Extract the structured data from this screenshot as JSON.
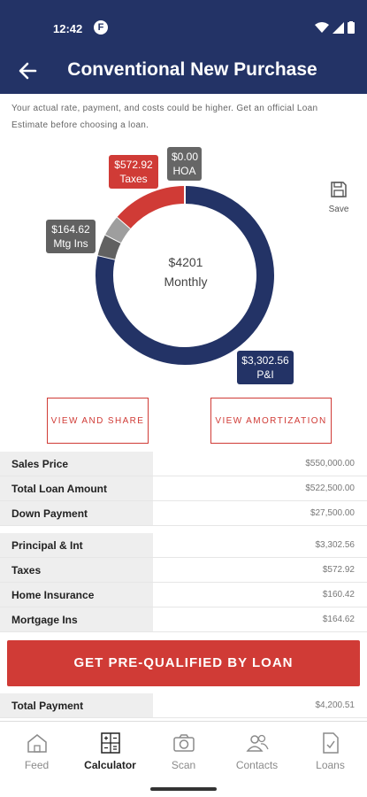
{
  "status_bar": {
    "time": "12:42",
    "app_badge": "F"
  },
  "header": {
    "title": "Conventional New Purchase"
  },
  "disclaimer": "Your actual rate, payment, and costs could be higher. Get an official Loan Estimate before choosing a loan.",
  "chart_data": {
    "type": "pie",
    "variant": "donut",
    "center_amount": "$4201",
    "center_label": "Monthly",
    "slices": [
      {
        "name": "P&I",
        "label": "$3,302.56",
        "value": 3302.56,
        "color": "#233366"
      },
      {
        "name": "Mtg Ins",
        "label": "$164.62",
        "value": 164.62,
        "color": "#616161"
      },
      {
        "name": "Home Insurance",
        "value": 160.42,
        "color": "#9e9e9e"
      },
      {
        "name": "Taxes",
        "label": "$572.92",
        "value": 572.92,
        "color": "#d03b36"
      },
      {
        "name": "HOA",
        "label": "$0.00",
        "value": 0.0,
        "color": "#666666"
      }
    ]
  },
  "tags": {
    "hoa": {
      "amount": "$0.00",
      "name": "HOA"
    },
    "taxes": {
      "amount": "$572.92",
      "name": "Taxes"
    },
    "mtg": {
      "amount": "$164.62",
      "name": "Mtg Ins"
    },
    "pi": {
      "amount": "$3,302.56",
      "name": "P&I"
    }
  },
  "save_label": "Save",
  "buttons": {
    "share": "VIEW AND SHARE",
    "amortization": "VIEW AMORTIZATION",
    "cta": "GET PRE-QUALIFIED BY LOAN"
  },
  "loan_rows": [
    {
      "label": "Sales Price",
      "value": "$550,000.00"
    },
    {
      "label": "Total Loan Amount",
      "value": "$522,500.00"
    },
    {
      "label": "Down Payment",
      "value": "$27,500.00"
    }
  ],
  "payment_rows": [
    {
      "label": "Principal & Int",
      "value": "$3,302.56"
    },
    {
      "label": "Taxes",
      "value": "$572.92"
    },
    {
      "label": "Home Insurance",
      "value": "$160.42"
    },
    {
      "label": "Mortgage Ins",
      "value": "$164.62"
    }
  ],
  "total_row": {
    "label": "Total Payment",
    "value": "$4,200.51"
  },
  "nav": [
    {
      "label": "Feed",
      "icon": "home-icon"
    },
    {
      "label": "Calculator",
      "icon": "calculator-icon",
      "active": true
    },
    {
      "label": "Scan",
      "icon": "camera-icon"
    },
    {
      "label": "Contacts",
      "icon": "contacts-icon"
    },
    {
      "label": "Loans",
      "icon": "document-check-icon"
    }
  ]
}
